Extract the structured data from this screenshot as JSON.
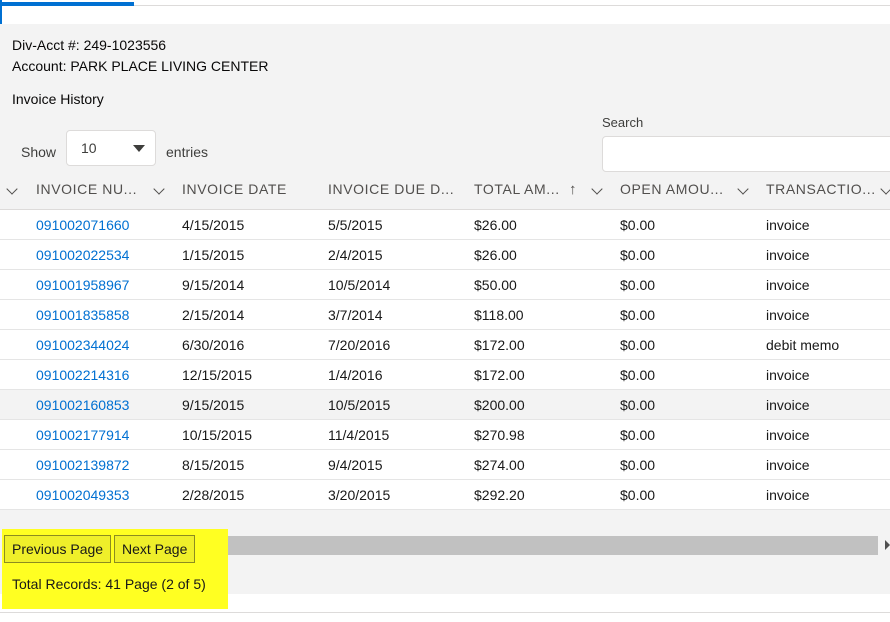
{
  "account": {
    "div_acct": "Div-Acct #: 249-1023556",
    "name": "Account: PARK PLACE LIVING CENTER"
  },
  "section_title": "Invoice History",
  "controls": {
    "show_label": "Show",
    "entries_selected": "10",
    "entries_label": "entries",
    "search_label": "Search",
    "search_value": ""
  },
  "table": {
    "columns": [
      {
        "label": "INVOICE NU..."
      },
      {
        "label": "INVOICE DATE"
      },
      {
        "label": "INVOICE DUE D..."
      },
      {
        "label": "TOTAL AM..."
      },
      {
        "label": "OPEN AMOU..."
      },
      {
        "label": "TRANSACTIO..."
      }
    ],
    "sort_indicator": "↑",
    "rows": [
      {
        "invoice": "091002071660",
        "date": "4/15/2015",
        "due": "5/5/2015",
        "total": "$26.00",
        "open": "$0.00",
        "type": "invoice"
      },
      {
        "invoice": "091002022534",
        "date": "1/15/2015",
        "due": "2/4/2015",
        "total": "$26.00",
        "open": "$0.00",
        "type": "invoice"
      },
      {
        "invoice": "091001958967",
        "date": "9/15/2014",
        "due": "10/5/2014",
        "total": "$50.00",
        "open": "$0.00",
        "type": "invoice"
      },
      {
        "invoice": "091001835858",
        "date": "2/15/2014",
        "due": "3/7/2014",
        "total": "$118.00",
        "open": "$0.00",
        "type": "invoice"
      },
      {
        "invoice": "091002344024",
        "date": "6/30/2016",
        "due": "7/20/2016",
        "total": "$172.00",
        "open": "$0.00",
        "type": "debit memo"
      },
      {
        "invoice": "091002214316",
        "date": "12/15/2015",
        "due": "1/4/2016",
        "total": "$172.00",
        "open": "$0.00",
        "type": "invoice"
      },
      {
        "invoice": "091002160853",
        "date": "9/15/2015",
        "due": "10/5/2015",
        "total": "$200.00",
        "open": "$0.00",
        "type": "invoice"
      },
      {
        "invoice": "091002177914",
        "date": "10/15/2015",
        "due": "11/4/2015",
        "total": "$270.98",
        "open": "$0.00",
        "type": "invoice"
      },
      {
        "invoice": "091002139872",
        "date": "8/15/2015",
        "due": "9/4/2015",
        "total": "$274.00",
        "open": "$0.00",
        "type": "invoice"
      },
      {
        "invoice": "091002049353",
        "date": "2/28/2015",
        "due": "3/20/2015",
        "total": "$292.20",
        "open": "$0.00",
        "type": "invoice"
      }
    ]
  },
  "pager": {
    "previous_label": "Previous Page",
    "next_label": "Next Page",
    "totals_text": "Total Records: 41 Page (2 of 5)"
  },
  "colors": {
    "link": "#0070d2",
    "highlight": "#ffff22",
    "panel_bg": "#f3f3f3"
  }
}
